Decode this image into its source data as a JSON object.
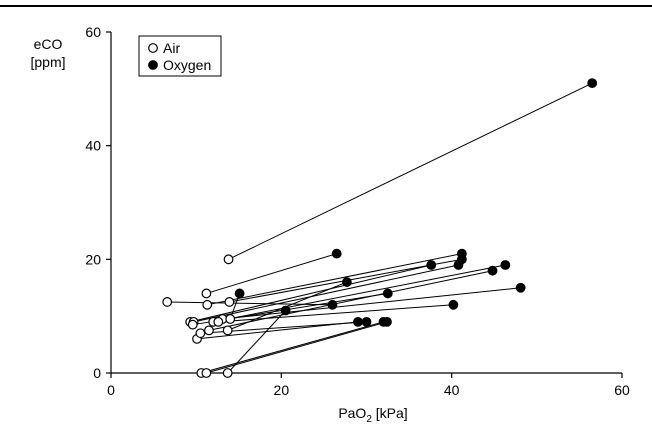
{
  "chart_data": {
    "type": "scatter",
    "ylabel_line1": "eCO",
    "ylabel_line2": "[ppm]",
    "xlabel_main": "PaO",
    "xlabel_sub": "2",
    "xlabel_unit": " [kPa]",
    "xlim": [
      0,
      60
    ],
    "ylim": [
      0,
      60
    ],
    "xticks": [
      "0",
      "20",
      "40",
      "60"
    ],
    "yticks": [
      "0",
      "20",
      "40",
      "60"
    ],
    "legend": [
      {
        "label": "Air",
        "marker": "open-circle"
      },
      {
        "label": "Oxygen",
        "marker": "filled-circle"
      }
    ],
    "pairs": [
      {
        "air": [
          13.8,
          20.0
        ],
        "oxygen": [
          56.5,
          51.0
        ]
      },
      {
        "air": [
          11.2,
          14.0
        ],
        "oxygen": [
          26.5,
          21.0
        ]
      },
      {
        "air": [
          11.3,
          12.0
        ],
        "oxygen": [
          41.2,
          21.0
        ]
      },
      {
        "air": [
          13.9,
          12.5
        ],
        "oxygen": [
          41.2,
          20.0
        ]
      },
      {
        "air": [
          6.6,
          12.5
        ],
        "oxygen": [
          26.0,
          12.0
        ]
      },
      {
        "air": [
          9.3,
          9.0
        ],
        "oxygen": [
          37.6,
          19.0
        ]
      },
      {
        "air": [
          9.7,
          9.0
        ],
        "oxygen": [
          40.8,
          19.0
        ]
      },
      {
        "air": [
          12.0,
          9.0
        ],
        "oxygen": [
          46.3,
          19.0
        ]
      },
      {
        "air": [
          13.7,
          7.5
        ],
        "oxygen": [
          27.7,
          16.0
        ]
      },
      {
        "air": [
          11.5,
          7.5
        ],
        "oxygen": [
          44.8,
          18.0
        ]
      },
      {
        "air": [
          9.6,
          8.5
        ],
        "oxygen": [
          32.5,
          14.0
        ]
      },
      {
        "air": [
          13.1,
          9.5
        ],
        "oxygen": [
          48.1,
          15.0
        ]
      },
      {
        "air": [
          14.0,
          9.5
        ],
        "oxygen": [
          15.1,
          14.0
        ]
      },
      {
        "air": [
          12.6,
          9.0
        ],
        "oxygen": [
          40.2,
          12.0
        ]
      },
      {
        "air": [
          10.1,
          6.0
        ],
        "oxygen": [
          29.0,
          9.0
        ]
      },
      {
        "air": [
          10.5,
          7.0
        ],
        "oxygen": [
          30.0,
          9.0
        ]
      },
      {
        "air": [
          10.6,
          0.0
        ],
        "oxygen": [
          32.0,
          9.0
        ]
      },
      {
        "air": [
          11.2,
          0.0
        ],
        "oxygen": [
          32.4,
          9.0
        ]
      },
      {
        "air": [
          13.7,
          0.0
        ],
        "oxygen": [
          20.5,
          11.0
        ]
      }
    ]
  }
}
